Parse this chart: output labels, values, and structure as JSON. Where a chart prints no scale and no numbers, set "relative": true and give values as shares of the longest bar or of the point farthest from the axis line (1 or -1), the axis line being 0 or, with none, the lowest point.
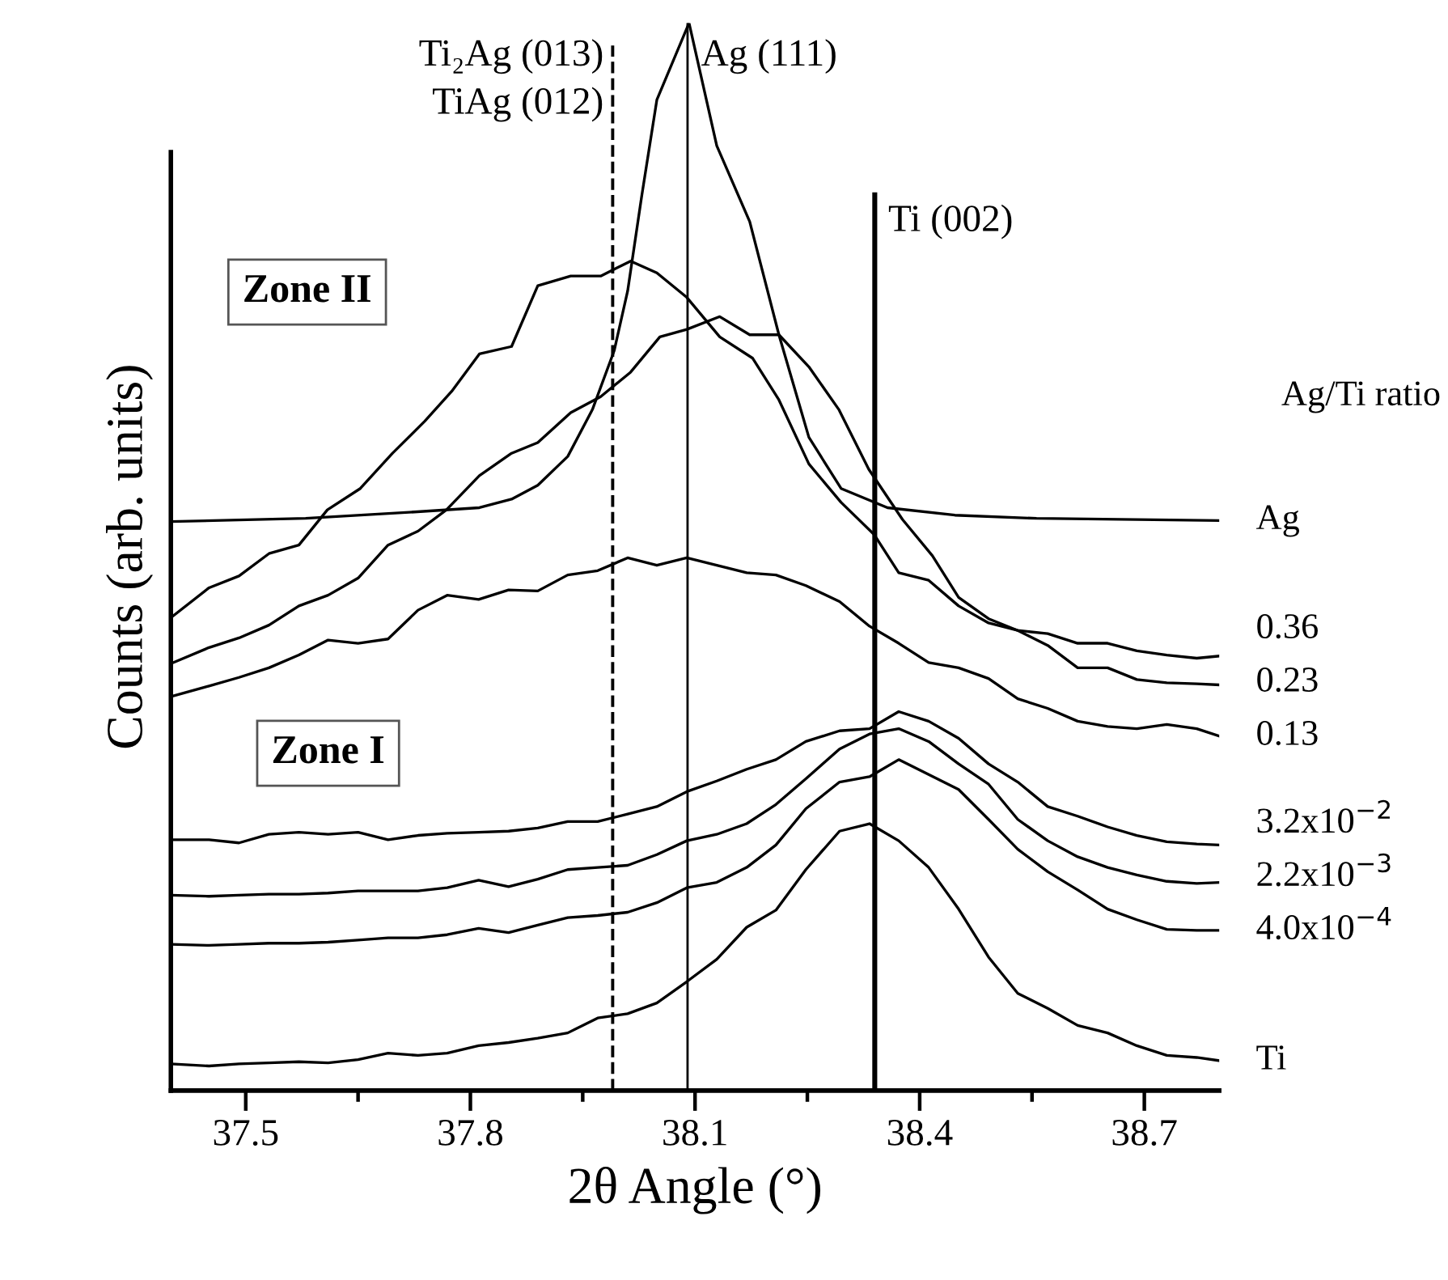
{
  "chart_data": {
    "type": "line",
    "relative": true,
    "xlabel": "2θ Angle (°)",
    "ylabel": "Counts (arb. units)",
    "legend_title": "Ag/Ti ratio",
    "xlim": [
      37.4,
      38.8
    ],
    "xticks": [
      37.5,
      {
        "value": 37.65,
        "label": null
      },
      37.8,
      {
        "value": 37.95,
        "label": null
      },
      38.1,
      {
        "value": 38.25,
        "label": null
      },
      38.4,
      {
        "value": 38.55,
        "label": null
      },
      38.7
    ],
    "annotations": [
      "Zone II",
      "Zone I"
    ],
    "ref_lines": [
      {
        "axis": "x",
        "value": 37.99,
        "label": "Ti₂Ag (013)\nTiAg (012)",
        "line_style": "dashed",
        "color": "#000000"
      },
      {
        "axis": "x",
        "value": 38.09,
        "label": "Ag (111)",
        "line_style": "solid",
        "color": "#000000"
      },
      {
        "axis": "x",
        "value": 38.34,
        "label": "Ti (002)",
        "line_style": "solid",
        "color": "#000000"
      }
    ],
    "series": [
      {
        "name": "Ag",
        "color": "#000000",
        "x": [
          37.4,
          37.58,
          37.725,
          37.812,
          37.855,
          37.89,
          37.93,
          37.963,
          37.992,
          38.01,
          38.029,
          38.049,
          38.092,
          38.129,
          38.173,
          38.212,
          38.252,
          38.295,
          38.357,
          38.447,
          38.556,
          38.8
        ],
        "values": [
          0.533,
          0.536,
          0.542,
          0.546,
          0.554,
          0.567,
          0.594,
          0.638,
          0.693,
          0.749,
          0.839,
          0.928,
          1.0,
          0.885,
          0.814,
          0.708,
          0.612,
          0.564,
          0.546,
          0.539,
          0.536,
          0.534
        ]
      },
      {
        "name": "0.36",
        "color": "#000000",
        "x": [
          37.4,
          37.451,
          37.491,
          37.531,
          37.571,
          37.609,
          37.653,
          37.696,
          37.739,
          37.775,
          37.812,
          37.855,
          37.89,
          37.934,
          37.974,
          38.014,
          38.049,
          38.089,
          38.133,
          38.177,
          38.212,
          38.252,
          38.295,
          38.339,
          38.372,
          38.412,
          38.452,
          38.492,
          38.531,
          38.571,
          38.611,
          38.651,
          38.69,
          38.73,
          38.77,
          38.8
        ],
        "values": [
          0.443,
          0.471,
          0.482,
          0.503,
          0.511,
          0.544,
          0.564,
          0.597,
          0.627,
          0.655,
          0.69,
          0.697,
          0.754,
          0.763,
          0.763,
          0.777,
          0.766,
          0.743,
          0.706,
          0.686,
          0.647,
          0.587,
          0.551,
          0.521,
          0.485,
          0.478,
          0.454,
          0.438,
          0.431,
          0.428,
          0.419,
          0.419,
          0.412,
          0.408,
          0.405,
          0.407
        ]
      },
      {
        "name": "0.23",
        "color": "#000000",
        "x": [
          37.4,
          37.451,
          37.491,
          37.531,
          37.571,
          37.61,
          37.65,
          37.69,
          37.73,
          37.768,
          37.812,
          37.855,
          37.89,
          37.934,
          37.974,
          38.014,
          38.053,
          38.089,
          38.133,
          38.173,
          38.212,
          38.252,
          38.292,
          38.332,
          38.377,
          38.417,
          38.452,
          38.492,
          38.531,
          38.571,
          38.611,
          38.651,
          38.69,
          38.73,
          38.77,
          38.8
        ],
        "values": [
          0.4,
          0.415,
          0.424,
          0.436,
          0.454,
          0.464,
          0.48,
          0.511,
          0.524,
          0.544,
          0.576,
          0.597,
          0.607,
          0.635,
          0.65,
          0.673,
          0.706,
          0.713,
          0.725,
          0.708,
          0.708,
          0.678,
          0.638,
          0.582,
          0.535,
          0.501,
          0.462,
          0.442,
          0.431,
          0.417,
          0.396,
          0.396,
          0.385,
          0.382,
          0.381,
          0.38
        ]
      },
      {
        "name": "0.13",
        "color": "#000000",
        "x": [
          37.4,
          37.451,
          37.491,
          37.531,
          37.571,
          37.61,
          37.65,
          37.69,
          37.73,
          37.769,
          37.811,
          37.851,
          37.89,
          37.93,
          37.97,
          38.01,
          38.049,
          38.089,
          38.129,
          38.169,
          38.208,
          38.248,
          38.293,
          38.333,
          38.372,
          38.412,
          38.452,
          38.492,
          38.531,
          38.571,
          38.611,
          38.651,
          38.69,
          38.73,
          38.77,
          38.8
        ],
        "values": [
          0.369,
          0.379,
          0.387,
          0.396,
          0.408,
          0.422,
          0.419,
          0.423,
          0.45,
          0.464,
          0.46,
          0.469,
          0.468,
          0.483,
          0.487,
          0.499,
          0.492,
          0.499,
          0.492,
          0.485,
          0.483,
          0.473,
          0.458,
          0.435,
          0.419,
          0.401,
          0.396,
          0.386,
          0.367,
          0.358,
          0.346,
          0.341,
          0.339,
          0.343,
          0.339,
          0.332
        ]
      },
      {
        "name": "3.2x10$^{−2}$",
        "color": "#000000",
        "x": [
          37.4,
          37.451,
          37.491,
          37.531,
          37.571,
          37.61,
          37.65,
          37.69,
          37.73,
          37.769,
          37.811,
          37.851,
          37.89,
          37.93,
          37.97,
          38.01,
          38.049,
          38.089,
          38.129,
          38.169,
          38.208,
          38.248,
          38.293,
          38.333,
          38.372,
          38.412,
          38.452,
          38.492,
          38.531,
          38.571,
          38.611,
          38.651,
          38.69,
          38.73,
          38.77,
          38.8
        ],
        "values": [
          0.235,
          0.235,
          0.232,
          0.24,
          0.242,
          0.24,
          0.242,
          0.235,
          0.239,
          0.241,
          0.242,
          0.243,
          0.246,
          0.252,
          0.252,
          0.259,
          0.266,
          0.28,
          0.29,
          0.301,
          0.31,
          0.327,
          0.337,
          0.339,
          0.355,
          0.346,
          0.33,
          0.306,
          0.289,
          0.266,
          0.257,
          0.247,
          0.239,
          0.233,
          0.231,
          0.23
        ]
      },
      {
        "name": "2.2x10$^{−3}$",
        "color": "#000000",
        "x": [
          37.4,
          37.451,
          37.491,
          37.531,
          37.571,
          37.61,
          37.65,
          37.69,
          37.73,
          37.769,
          37.811,
          37.851,
          37.89,
          37.93,
          37.97,
          38.01,
          38.049,
          38.089,
          38.129,
          38.169,
          38.208,
          38.248,
          38.293,
          38.333,
          38.372,
          38.412,
          38.452,
          38.492,
          38.531,
          38.571,
          38.611,
          38.651,
          38.69,
          38.73,
          38.77,
          38.8
        ],
        "values": [
          0.183,
          0.182,
          0.183,
          0.184,
          0.184,
          0.185,
          0.187,
          0.187,
          0.187,
          0.19,
          0.197,
          0.191,
          0.198,
          0.207,
          0.209,
          0.211,
          0.221,
          0.234,
          0.24,
          0.25,
          0.268,
          0.292,
          0.32,
          0.334,
          0.339,
          0.327,
          0.306,
          0.287,
          0.254,
          0.234,
          0.219,
          0.209,
          0.202,
          0.196,
          0.194,
          0.195
        ]
      },
      {
        "name": "4.0x10$^{−4}$",
        "color": "#000000",
        "x": [
          37.4,
          37.451,
          37.491,
          37.531,
          37.571,
          37.61,
          37.65,
          37.69,
          37.73,
          37.769,
          37.811,
          37.851,
          37.89,
          37.93,
          37.97,
          38.01,
          38.049,
          38.089,
          38.129,
          38.169,
          38.208,
          38.248,
          38.293,
          38.333,
          38.372,
          38.412,
          38.452,
          38.492,
          38.531,
          38.571,
          38.611,
          38.651,
          38.69,
          38.73,
          38.77,
          38.8
        ],
        "values": [
          0.137,
          0.136,
          0.137,
          0.138,
          0.138,
          0.139,
          0.141,
          0.143,
          0.143,
          0.146,
          0.152,
          0.148,
          0.155,
          0.162,
          0.164,
          0.167,
          0.176,
          0.19,
          0.195,
          0.209,
          0.23,
          0.264,
          0.289,
          0.294,
          0.31,
          0.296,
          0.282,
          0.254,
          0.226,
          0.205,
          0.188,
          0.17,
          0.16,
          0.151,
          0.15,
          0.15
        ]
      },
      {
        "name": "Ti",
        "color": "#000000",
        "x": [
          37.4,
          37.451,
          37.491,
          37.531,
          37.571,
          37.61,
          37.65,
          37.69,
          37.73,
          37.769,
          37.811,
          37.851,
          37.89,
          37.93,
          37.97,
          38.01,
          38.049,
          38.089,
          38.129,
          38.169,
          38.208,
          38.248,
          38.293,
          38.333,
          38.372,
          38.412,
          38.452,
          38.492,
          38.531,
          38.571,
          38.611,
          38.651,
          38.69,
          38.73,
          38.77,
          38.8
        ],
        "values": [
          0.025,
          0.023,
          0.025,
          0.026,
          0.027,
          0.026,
          0.029,
          0.035,
          0.033,
          0.035,
          0.042,
          0.045,
          0.049,
          0.054,
          0.068,
          0.072,
          0.082,
          0.102,
          0.123,
          0.153,
          0.169,
          0.207,
          0.243,
          0.25,
          0.234,
          0.209,
          0.17,
          0.125,
          0.091,
          0.077,
          0.061,
          0.054,
          0.042,
          0.033,
          0.031,
          0.028
        ]
      }
    ]
  }
}
